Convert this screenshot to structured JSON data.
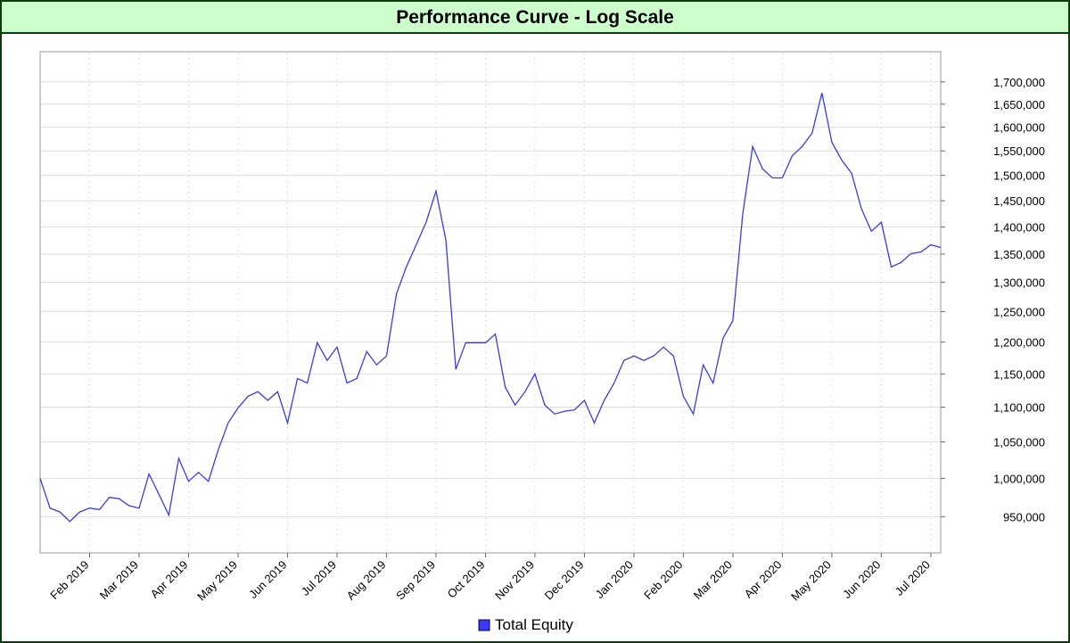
{
  "chart_data": {
    "type": "line",
    "title": "Performance Curve - Log Scale",
    "categories": [
      null,
      null,
      null,
      null,
      null,
      "Feb 2019",
      null,
      null,
      null,
      null,
      "Mar 2019",
      null,
      null,
      null,
      null,
      "Apr 2019",
      null,
      null,
      null,
      null,
      "May 2019",
      null,
      null,
      null,
      null,
      "Jun 2019",
      null,
      null,
      null,
      null,
      "Jul 2019",
      null,
      null,
      null,
      null,
      "Aug 2019",
      null,
      null,
      null,
      null,
      "Sep 2019",
      null,
      null,
      null,
      null,
      "Oct 2019",
      null,
      null,
      null,
      null,
      "Nov 2019",
      null,
      null,
      null,
      null,
      "Dec 2019",
      null,
      null,
      null,
      null,
      "Jan 2020",
      null,
      null,
      null,
      null,
      "Feb 2020",
      null,
      null,
      null,
      null,
      "Mar 2020",
      null,
      null,
      null,
      null,
      "Apr 2020",
      null,
      null,
      null,
      null,
      "May 2020",
      null,
      null,
      null,
      null,
      "Jun 2020",
      null,
      null,
      null,
      null,
      "Jul 2020",
      null
    ],
    "series": [
      {
        "name": "Total Equity",
        "color": "#3a3af0",
        "values": [
          1000000,
          961000,
          956000,
          944000,
          956000,
          961000,
          959000,
          975000,
          973000,
          964000,
          961000,
          1006000,
          979000,
          952000,
          1027000,
          996000,
          1008000,
          996000,
          1039000,
          1077000,
          1099000,
          1116000,
          1123000,
          1110000,
          1123000,
          1077000,
          1143000,
          1136000,
          1199000,
          1171000,
          1192000,
          1136000,
          1143000,
          1185000,
          1164000,
          1178000,
          1280000,
          1327000,
          1367000,
          1409000,
          1469000,
          1375000,
          1157000,
          1199000,
          1199000,
          1199000,
          1213000,
          1130000,
          1103000,
          1123000,
          1150000,
          1103000,
          1090000,
          1094000,
          1096000,
          1110000,
          1077000,
          1110000,
          1136000,
          1171000,
          1178000,
          1171000,
          1178000,
          1192000,
          1178000,
          1116000,
          1090000,
          1164000,
          1136000,
          1206000,
          1235000,
          1425000,
          1559000,
          1513000,
          1495000,
          1495000,
          1540000,
          1559000,
          1587000,
          1675000,
          1568000,
          1531000,
          1504000,
          1434000,
          1392000,
          1409000,
          1327000,
          1335000,
          1351000,
          1354000,
          1367000,
          1362000
        ]
      }
    ],
    "ylim": [
      905000,
      1770000
    ],
    "yticks": [
      {
        "value": 950000,
        "label": "950,000"
      },
      {
        "value": 1000000,
        "label": "1,000,000"
      },
      {
        "value": 1050000,
        "label": "1,050,000"
      },
      {
        "value": 1100000,
        "label": "1,100,000"
      },
      {
        "value": 1150000,
        "label": "1,150,000"
      },
      {
        "value": 1200000,
        "label": "1,200,000"
      },
      {
        "value": 1250000,
        "label": "1,250,000"
      },
      {
        "value": 1300000,
        "label": "1,300,000"
      },
      {
        "value": 1350000,
        "label": "1,350,000"
      },
      {
        "value": 1400000,
        "label": "1,400,000"
      },
      {
        "value": 1450000,
        "label": "1,450,000"
      },
      {
        "value": 1500000,
        "label": "1,500,000"
      },
      {
        "value": 1550000,
        "label": "1,550,000"
      },
      {
        "value": 1600000,
        "label": "1,600,000"
      },
      {
        "value": 1650000,
        "label": "1,650,000"
      },
      {
        "value": 1700000,
        "label": "1,700,000"
      }
    ],
    "log_scale": true,
    "grid": true,
    "legend": "bottom"
  }
}
